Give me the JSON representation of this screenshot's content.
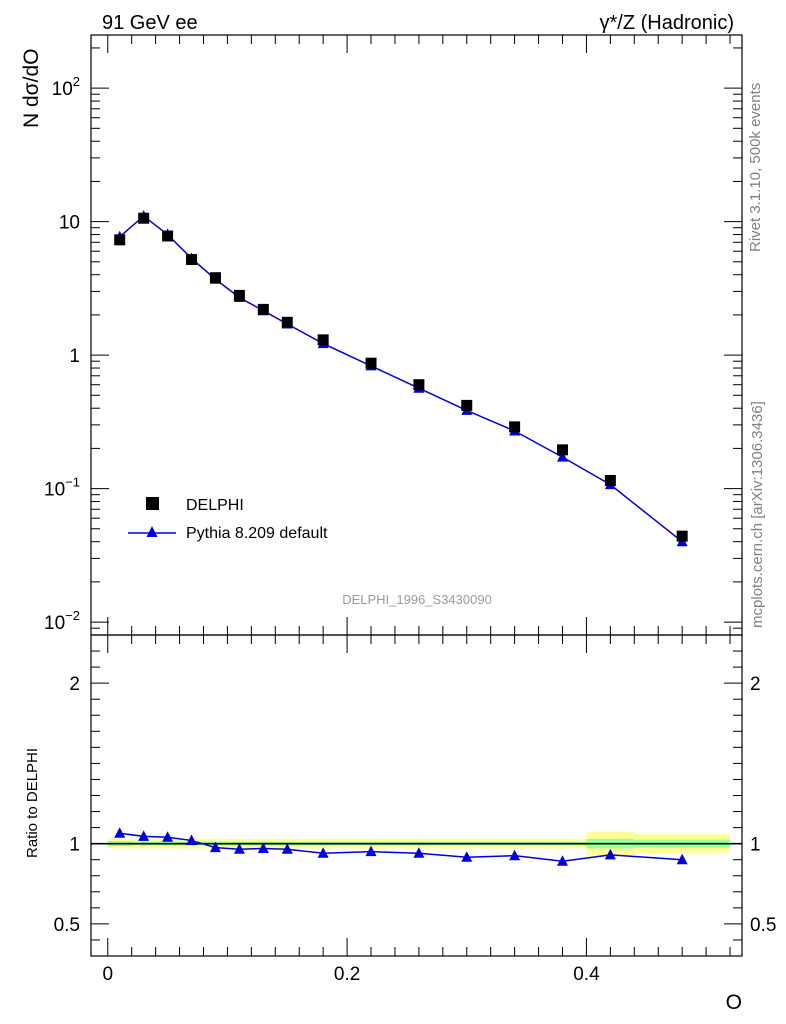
{
  "header": {
    "left_title": "91 GeV ee",
    "right_title": "γ*/Z (Hadronic)"
  },
  "side_labels": {
    "rivet": "Rivet 3.1.10,  500k events",
    "mcplots": "mcplots.cern.ch [arXiv:1306.3436]"
  },
  "watermark": "DELPHI_1996_S3430090",
  "colors": {
    "data": "#000000",
    "mc": "#0000dd",
    "band_outer": "#ffff99",
    "band_inner": "#99ff99"
  },
  "chart_data": [
    {
      "type": "scatter",
      "title": "91 GeV ee",
      "ylabel": "N dσ/dO",
      "yscale": "log",
      "ylim": [
        0.008,
        250
      ],
      "xlim": [
        -0.014,
        0.53
      ],
      "yticks": [
        {
          "value": 100,
          "base": "10",
          "exp": "2"
        },
        {
          "value": 10,
          "base": "10",
          "exp": ""
        },
        {
          "value": 1,
          "base": "1",
          "exp": ""
        },
        {
          "value": 0.1,
          "base": "10",
          "exp": "−1"
        },
        {
          "value": 0.01,
          "base": "10",
          "exp": "−2"
        }
      ],
      "legend": {
        "position": "lower-left",
        "entries": [
          {
            "label": "DELPHI",
            "marker": "square"
          },
          {
            "label": "Pythia 8.209 default",
            "marker": "triangle-line"
          }
        ]
      },
      "x": [
        0.01,
        0.03,
        0.05,
        0.07,
        0.09,
        0.11,
        0.13,
        0.15,
        0.18,
        0.22,
        0.26,
        0.3,
        0.34,
        0.38,
        0.42,
        0.48
      ],
      "series": [
        {
          "name": "DELPHI",
          "values": [
            7.3,
            10.6,
            7.8,
            5.2,
            3.8,
            2.8,
            2.2,
            1.76,
            1.3,
            0.87,
            0.6,
            0.42,
            0.29,
            0.195,
            0.115,
            0.044
          ]
        },
        {
          "name": "Pythia 8.209 default",
          "values": [
            7.7,
            11.0,
            8.0,
            5.3,
            3.7,
            2.7,
            2.15,
            1.71,
            1.22,
            0.83,
            0.565,
            0.385,
            0.27,
            0.172,
            0.107,
            0.04
          ]
        }
      ]
    },
    {
      "type": "line",
      "ylabel": "Ratio to DELPHI",
      "xlabel": "O",
      "ylim": [
        0.3,
        2.3
      ],
      "xlim": [
        -0.014,
        0.53
      ],
      "yticks": [
        {
          "value": 2,
          "label": "2"
        },
        {
          "value": 1,
          "label": "1"
        },
        {
          "value": 0.5,
          "label": "0.5"
        }
      ],
      "xticks": [
        {
          "value": 0,
          "label": "0"
        },
        {
          "value": 0.2,
          "label": "0.2"
        },
        {
          "value": 0.4,
          "label": "0.4"
        }
      ],
      "reference": 1.0,
      "bands": [
        {
          "x_from": 0.0,
          "x_to": 0.02,
          "outer": 0.03,
          "inner": 0.015
        },
        {
          "x_from": 0.02,
          "x_to": 0.4,
          "outer": 0.03,
          "inner": 0.012
        },
        {
          "x_from": 0.4,
          "x_to": 0.44,
          "outer": 0.075,
          "inner": 0.03
        },
        {
          "x_from": 0.44,
          "x_to": 0.52,
          "outer": 0.06,
          "inner": 0.025
        }
      ],
      "series": [
        {
          "name": "Pythia 8.209 default / DELPHI",
          "values": [
            1.065,
            1.045,
            1.04,
            1.02,
            0.975,
            0.965,
            0.97,
            0.965,
            0.94,
            0.95,
            0.94,
            0.915,
            0.925,
            0.89,
            0.93,
            0.9
          ]
        }
      ]
    }
  ]
}
